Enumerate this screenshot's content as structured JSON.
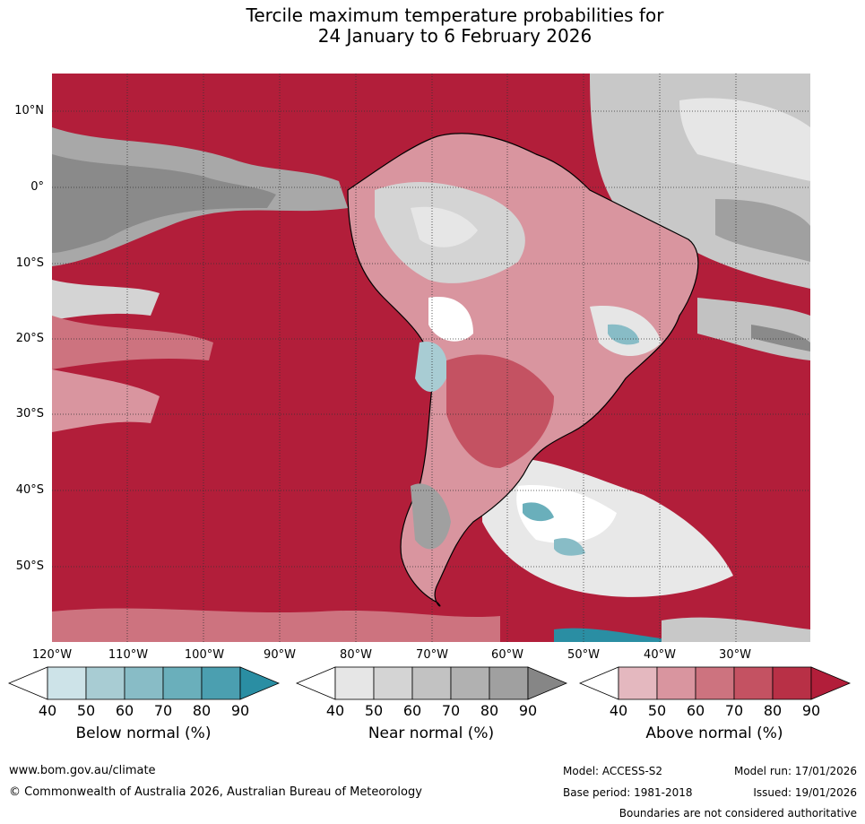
{
  "title": {
    "line1": "Tercile maximum temperature probabilities for",
    "line2": "24 January to 6 February 2026"
  },
  "map": {
    "latitude_labels": [
      "10°N",
      "0°",
      "10°S",
      "20°S",
      "30°S",
      "40°S",
      "50°S"
    ],
    "longitude_labels": [
      "120°W",
      "110°W",
      "100°W",
      "90°W",
      "80°W",
      "70°W",
      "60°W",
      "50°W",
      "40°W",
      "30°W"
    ]
  },
  "colorbars": [
    {
      "label": "Below normal (%)",
      "ticks": [
        "40",
        "50",
        "60",
        "70",
        "80",
        "90"
      ],
      "colors": [
        "#ffffff",
        "#cde3e8",
        "#a8ccd3",
        "#88bcc6",
        "#6aafbb",
        "#4b9fb0",
        "#2a8ea3"
      ]
    },
    {
      "label": "Near normal (%)",
      "ticks": [
        "40",
        "50",
        "60",
        "70",
        "80",
        "90"
      ],
      "colors": [
        "#ffffff",
        "#e6e6e6",
        "#d4d4d4",
        "#c2c2c2",
        "#b1b1b1",
        "#a0a0a0",
        "#868686"
      ]
    },
    {
      "label": "Above normal (%)",
      "ticks": [
        "40",
        "50",
        "60",
        "70",
        "80",
        "90"
      ],
      "colors": [
        "#ffffff",
        "#e4b8bf",
        "#d9959f",
        "#cd737f",
        "#c45262",
        "#b83046",
        "#b21e3a"
      ]
    }
  ],
  "footer": {
    "website": "www.bom.gov.au/climate",
    "copyright": "© Commonwealth of Australia 2026, Australian Bureau of Meteorology",
    "model": "Model: ACCESS-S2",
    "base_period": "Base period: 1981-2018",
    "model_run": "Model run: 17/01/2026",
    "issued": "Issued: 19/01/2026",
    "disclaimer": "Boundaries are not considered authoritative"
  }
}
